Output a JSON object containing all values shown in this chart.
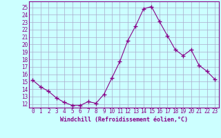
{
  "x": [
    0,
    1,
    2,
    3,
    4,
    5,
    6,
    7,
    8,
    9,
    10,
    11,
    12,
    13,
    14,
    15,
    16,
    17,
    18,
    19,
    20,
    21,
    22,
    23
  ],
  "y": [
    15.2,
    14.3,
    13.7,
    12.8,
    12.2,
    11.8,
    11.8,
    12.3,
    12.1,
    13.3,
    15.5,
    17.7,
    20.5,
    22.5,
    24.8,
    25.1,
    23.1,
    21.2,
    19.3,
    18.5,
    19.3,
    17.2,
    16.4,
    15.3
  ],
  "line_color": "#880088",
  "marker": "+",
  "marker_size": 4,
  "bg_color": "#ccffff",
  "grid_color": "#aaaacc",
  "xlabel": "Windchill (Refroidissement éolien,°C)",
  "ylim": [
    11.5,
    25.8
  ],
  "xlim": [
    -0.5,
    23.5
  ],
  "yticks": [
    12,
    13,
    14,
    15,
    16,
    17,
    18,
    19,
    20,
    21,
    22,
    23,
    24,
    25
  ],
  "xticks": [
    0,
    1,
    2,
    3,
    4,
    5,
    6,
    7,
    8,
    9,
    10,
    11,
    12,
    13,
    14,
    15,
    16,
    17,
    18,
    19,
    20,
    21,
    22,
    23
  ],
  "label_color": "#880088",
  "tick_color": "#880088",
  "spine_color": "#880088",
  "tick_fontsize": 5.5,
  "xlabel_fontsize": 6.0
}
